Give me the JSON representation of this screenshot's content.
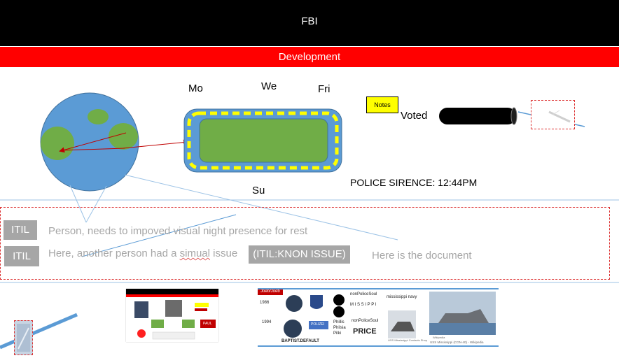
{
  "header": {
    "title": "FBI"
  },
  "banner": {
    "title": "Development"
  },
  "days": {
    "mo": "Mo",
    "we": "We",
    "fri": "Fri",
    "su": "Su"
  },
  "notes": {
    "label": "Notes"
  },
  "voted": {
    "label": "Voted"
  },
  "police": {
    "text": "POLICE SIRENCE: 12:44PM"
  },
  "itil_rows": [
    {
      "tag": "ITIL",
      "text": "Person, needs to impoved visual night presence for rest"
    },
    {
      "tag": "ITIL",
      "text_before": "Here, another person had a ",
      "text_squiggle": "simual",
      "text_after": " issue",
      "badge": "(ITIL:KNON ISSUE)"
    }
  ],
  "document_link": {
    "text": "Here is the document"
  },
  "thumb2": {
    "header": "Joeb/Joeb",
    "year1": "1986",
    "year2": "1994",
    "label_a": "nonPoliceSoul",
    "label_b": "M I S S I P P I",
    "label_c": "mississippi navy",
    "label_d": "nonPoliceSoul",
    "label_e": "PRICE",
    "label_f": "POLIZEI",
    "label_g": "Phillis",
    "label_h": "Philsia",
    "label_i": "Pilki",
    "label_j": "BAPTIST.DEFAULT",
    "caption1": "USS Mississippi Contacts Shop",
    "caption2": "Wikipedia",
    "caption3": "USS Mississippi (CGN-40) - Wikipedia"
  },
  "thumb1": {
    "badge": "PAUL"
  },
  "colors": {
    "header": "#000000",
    "banner": "#ff0000",
    "globe_ocean": "#5b9bd5",
    "land": "#70ad47",
    "accent_yellow": "#ffff00"
  }
}
